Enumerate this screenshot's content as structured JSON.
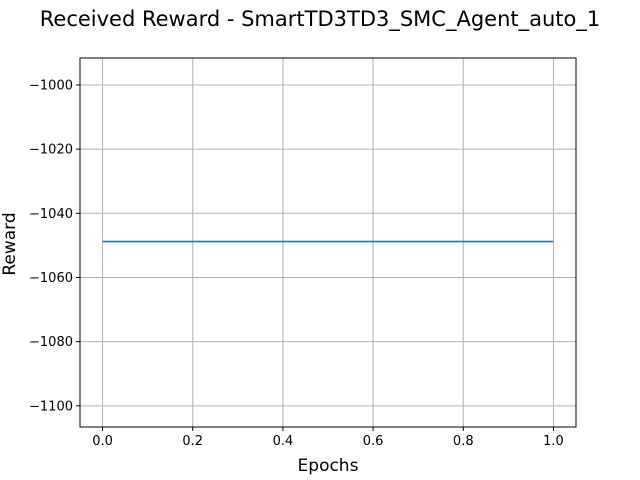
{
  "chart_data": {
    "type": "line",
    "title": "Received Reward - SmartTD3TD3_SMC_Agent_auto_1",
    "xlabel": "Epochs",
    "ylabel": "Reward",
    "x_ticks": [
      "0.0",
      "0.2",
      "0.4",
      "0.6",
      "0.8",
      "1.0"
    ],
    "y_ticks": [
      "−1000",
      "−1020",
      "−1040",
      "−1060",
      "−1080",
      "−1100"
    ],
    "xlim": [
      -0.05,
      1.05
    ],
    "ylim": [
      -1106.6,
      -991.6
    ],
    "grid": true,
    "series": [
      {
        "color": "#1f77b4",
        "x": [
          0.0,
          1.0
        ],
        "y": [
          -1048.8,
          -1048.8
        ]
      }
    ]
  }
}
